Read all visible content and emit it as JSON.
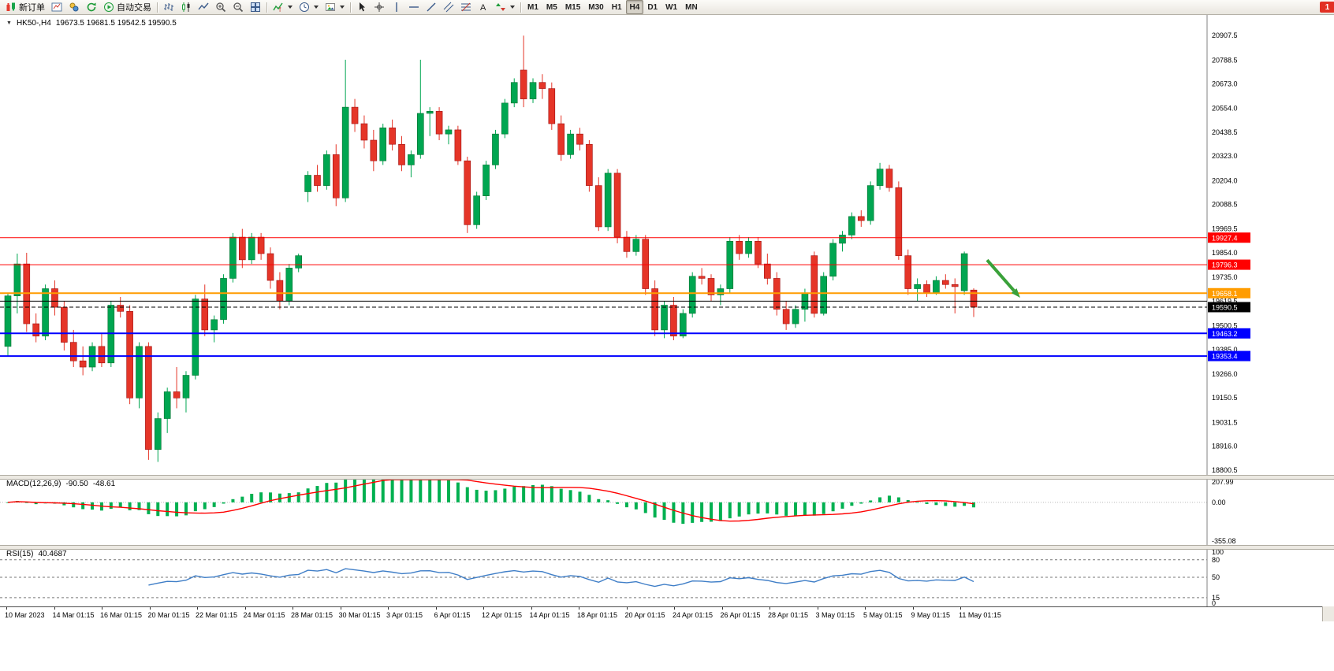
{
  "window": {
    "notification_badge": "1"
  },
  "toolbar": {
    "groups": [
      {
        "items": [
          {
            "name": "new-order",
            "icon": "new-order-icon",
            "label": "新订单"
          },
          {
            "name": "chart-window",
            "icon": "chart-window-icon"
          },
          {
            "name": "profiles",
            "icon": "profiles-icon"
          },
          {
            "name": "refresh",
            "icon": "refresh-icon"
          },
          {
            "name": "auto-trading",
            "icon": "auto-trading-icon",
            "label": "自动交易"
          }
        ]
      },
      {
        "items": [
          {
            "name": "chart-bars",
            "icon": "bars-icon"
          },
          {
            "name": "chart-candles",
            "icon": "candles-icon"
          },
          {
            "name": "chart-line",
            "icon": "line-chart-icon"
          },
          {
            "name": "zoom-in",
            "icon": "zoom-in-icon"
          },
          {
            "name": "zoom-out",
            "icon": "zoom-out-icon"
          },
          {
            "name": "tile-windows",
            "icon": "tile-icon"
          }
        ]
      },
      {
        "items": [
          {
            "name": "indicators",
            "icon": "indicators-icon",
            "caret": true
          },
          {
            "name": "periods",
            "icon": "clock-icon",
            "caret": true
          },
          {
            "name": "templates",
            "icon": "template-icon",
            "caret": true
          }
        ]
      },
      {
        "items": [
          {
            "name": "cursor",
            "icon": "cursor-icon"
          },
          {
            "name": "crosshair",
            "icon": "crosshair-icon"
          },
          {
            "name": "vertical-line",
            "icon": "vline-icon"
          },
          {
            "name": "horizontal-line",
            "icon": "hline-icon"
          },
          {
            "name": "trendline",
            "icon": "trendline-icon"
          },
          {
            "name": "channel",
            "icon": "channel-icon"
          },
          {
            "name": "fibonacci",
            "icon": "fibo-icon"
          },
          {
            "name": "text",
            "icon": "text-icon"
          },
          {
            "name": "arrows",
            "icon": "arrows-icon",
            "caret": true
          }
        ]
      }
    ],
    "timeframes": [
      "M1",
      "M5",
      "M15",
      "M30",
      "H1",
      "H4",
      "D1",
      "W1",
      "MN"
    ],
    "active_timeframe": "H4"
  },
  "chart": {
    "title_symbol_period": "HK50-,H4",
    "title_ohlc": "19673.5 19681.5 19542.5 19590.5",
    "colors": {
      "up": "#00a651",
      "down": "#e53528",
      "bg": "#ffffff"
    }
  },
  "indicators": {
    "macd": {
      "label": "MACD(12,26,9)",
      "value_macd": "-90.50",
      "value_signal": "-48.61"
    },
    "rsi": {
      "label": "RSI(15)",
      "value": "40.4687"
    }
  },
  "chart_data": [
    {
      "type": "candlestick",
      "symbol": "HK50",
      "timeframe": "H4",
      "title": "HK50-,H4",
      "ohlc_current": {
        "open": 19673.5,
        "high": 19681.5,
        "low": 19542.5,
        "close": 19590.5
      },
      "ylim": [
        18777,
        21011
      ],
      "y_ticks": [
        "20907.5",
        "20788.5",
        "20673.0",
        "20554.0",
        "20438.5",
        "20323.0",
        "20204.0",
        "20088.5",
        "19969.5",
        "19854.0",
        "19735.0",
        "19619.5",
        "19500.5",
        "19385.0",
        "19266.0",
        "19150.5",
        "19031.5",
        "18916.0",
        "18800.5"
      ],
      "x_labels": [
        "10 Mar 2023",
        "14 Mar 01:15",
        "16 Mar 01:15",
        "20 Mar 01:15",
        "22 Mar 01:15",
        "24 Mar 01:15",
        "28 Mar 01:15",
        "30 Mar 01:15",
        "3 Apr 01:15",
        "6 Apr 01:15",
        "12 Apr 01:15",
        "14 Apr 01:15",
        "18 Apr 01:15",
        "20 Apr 01:15",
        "24 Apr 01:15",
        "26 Apr 01:15",
        "28 Apr 01:15",
        "3 May 01:15",
        "5 May 01:15",
        "9 May 01:15",
        "11 May 01:15"
      ],
      "hlines": [
        {
          "price": 19927.4,
          "color": "#ff0000",
          "width": 1,
          "label": "19927.4"
        },
        {
          "price": 19796.3,
          "color": "#ff0000",
          "width": 1,
          "label": "19796.3"
        },
        {
          "price": 19658.1,
          "color": "#ff9c00",
          "width": 2,
          "label": "19658.1"
        },
        {
          "price": 19619.5,
          "color": "#000000",
          "width": 1,
          "label": null
        },
        {
          "price": 19590.5,
          "color": "#000000",
          "width": 1,
          "label": "19590.5",
          "dash": true,
          "current": true
        },
        {
          "price": 19463.2,
          "color": "#0000ff",
          "width": 2,
          "label": "19463.2"
        },
        {
          "price": 19353.4,
          "color": "#0000ff",
          "width": 2,
          "label": "19353.4"
        }
      ],
      "annotations": [
        {
          "name": "sell-arrow",
          "type": "arrow",
          "from_price": 19819,
          "to_price": 19636,
          "color": "#3aa13a"
        }
      ],
      "candles": [
        [
          19400,
          19660,
          19350,
          19645
        ],
        [
          19645,
          19850,
          19560,
          19800
        ],
        [
          19800,
          19854,
          19470,
          19510
        ],
        [
          19510,
          19560,
          19420,
          19450
        ],
        [
          19450,
          19700,
          19430,
          19680
        ],
        [
          19680,
          19720,
          19550,
          19590
        ],
        [
          19590,
          19620,
          19380,
          19420
        ],
        [
          19420,
          19480,
          19300,
          19330
        ],
        [
          19330,
          19400,
          19260,
          19300
        ],
        [
          19300,
          19420,
          19280,
          19400
        ],
        [
          19400,
          19460,
          19300,
          19320
        ],
        [
          19320,
          19620,
          19300,
          19600
        ],
        [
          19600,
          19640,
          19540,
          19570
        ],
        [
          19570,
          19600,
          19120,
          19150
        ],
        [
          19150,
          19420,
          19100,
          19400
        ],
        [
          19400,
          19420,
          18850,
          18900
        ],
        [
          18900,
          19080,
          18840,
          19050
        ],
        [
          19050,
          19200,
          18980,
          19180
        ],
        [
          19180,
          19300,
          19100,
          19150
        ],
        [
          19150,
          19280,
          19080,
          19260
        ],
        [
          19260,
          19650,
          19240,
          19630
        ],
        [
          19630,
          19700,
          19450,
          19480
        ],
        [
          19480,
          19550,
          19420,
          19530
        ],
        [
          19530,
          19750,
          19510,
          19730
        ],
        [
          19730,
          19950,
          19710,
          19930
        ],
        [
          19930,
          19970,
          19780,
          19820
        ],
        [
          19820,
          19950,
          19800,
          19930
        ],
        [
          19930,
          19950,
          19820,
          19850
        ],
        [
          19850,
          19880,
          19680,
          19720
        ],
        [
          19720,
          19760,
          19580,
          19620
        ],
        [
          19620,
          19800,
          19600,
          19780
        ],
        [
          19780,
          19850,
          19760,
          19840
        ],
        [
          20150,
          20250,
          20100,
          20230
        ],
        [
          20230,
          20280,
          20150,
          20180
        ],
        [
          20180,
          20350,
          20160,
          20330
        ],
        [
          20330,
          20380,
          20080,
          20120
        ],
        [
          20120,
          20790,
          20100,
          20560
        ],
        [
          20560,
          20600,
          20440,
          20480
        ],
        [
          20480,
          20520,
          20360,
          20400
        ],
        [
          20400,
          20450,
          20250,
          20300
        ],
        [
          20300,
          20480,
          20280,
          20460
        ],
        [
          20460,
          20500,
          20350,
          20380
        ],
        [
          20380,
          20420,
          20250,
          20280
        ],
        [
          20280,
          20350,
          20220,
          20330
        ],
        [
          20330,
          20790,
          20310,
          20530
        ],
        [
          20530,
          20560,
          20420,
          20540
        ],
        [
          20540,
          20560,
          20400,
          20430
        ],
        [
          20430,
          20470,
          20380,
          20450
        ],
        [
          20450,
          20470,
          20280,
          20300
        ],
        [
          20300,
          20320,
          19950,
          19990
        ],
        [
          19990,
          20150,
          19970,
          20130
        ],
        [
          20130,
          20300,
          20110,
          20280
        ],
        [
          20280,
          20450,
          20260,
          20430
        ],
        [
          20430,
          20600,
          20410,
          20580
        ],
        [
          20580,
          20700,
          20560,
          20680
        ],
        [
          20740,
          20907,
          20560,
          20600
        ],
        [
          20600,
          20700,
          20580,
          20680
        ],
        [
          20680,
          20720,
          20600,
          20650
        ],
        [
          20650,
          20680,
          20450,
          20480
        ],
        [
          20480,
          20520,
          20300,
          20330
        ],
        [
          20330,
          20450,
          20310,
          20430
        ],
        [
          20430,
          20460,
          20350,
          20380
        ],
        [
          20380,
          20400,
          20150,
          20180
        ],
        [
          20180,
          20220,
          19960,
          19980
        ],
        [
          19980,
          20260,
          19960,
          20240
        ],
        [
          20240,
          20260,
          19900,
          19930
        ],
        [
          19930,
          19960,
          19830,
          19860
        ],
        [
          19860,
          19940,
          19840,
          19920
        ],
        [
          19920,
          19940,
          19650,
          19680
        ],
        [
          19680,
          19720,
          19450,
          19480
        ],
        [
          19480,
          19620,
          19440,
          19600
        ],
        [
          19600,
          19640,
          19430,
          19450
        ],
        [
          19450,
          19580,
          19440,
          19560
        ],
        [
          19560,
          19760,
          19540,
          19740
        ],
        [
          19740,
          19780,
          19700,
          19730
        ],
        [
          19730,
          19750,
          19620,
          19650
        ],
        [
          19650,
          19700,
          19600,
          19680
        ],
        [
          19680,
          19930,
          19660,
          19910
        ],
        [
          19910,
          19940,
          19820,
          19850
        ],
        [
          19850,
          19930,
          19830,
          19910
        ],
        [
          19910,
          19930,
          19780,
          19800
        ],
        [
          19800,
          19850,
          19700,
          19730
        ],
        [
          19730,
          19760,
          19550,
          19580
        ],
        [
          19580,
          19620,
          19480,
          19510
        ],
        [
          19510,
          19600,
          19490,
          19580
        ],
        [
          19580,
          19680,
          19520,
          19660
        ],
        [
          19840,
          19860,
          19540,
          19560
        ],
        [
          19560,
          19760,
          19550,
          19740
        ],
        [
          19740,
          19920,
          19720,
          19900
        ],
        [
          19900,
          19960,
          19860,
          19940
        ],
        [
          19940,
          20050,
          19920,
          20030
        ],
        [
          20030,
          20060,
          19980,
          20010
        ],
        [
          20010,
          20200,
          19990,
          20180
        ],
        [
          20180,
          20290,
          20160,
          20260
        ],
        [
          20260,
          20280,
          20150,
          20170
        ],
        [
          20170,
          20200,
          19820,
          19840
        ],
        [
          19840,
          19870,
          19650,
          19680
        ],
        [
          19680,
          19730,
          19620,
          19700
        ],
        [
          19700,
          19720,
          19640,
          19660
        ],
        [
          19660,
          19740,
          19650,
          19720
        ],
        [
          19720,
          19750,
          19680,
          19700
        ],
        [
          19700,
          19730,
          19560,
          19690
        ],
        [
          19670,
          19860,
          19650,
          19850
        ],
        [
          19673.5,
          19681.5,
          19542.5,
          19590.5
        ]
      ]
    },
    {
      "type": "bar",
      "name": "MACD",
      "params": "12,26,9",
      "values_display": [
        "-90.50",
        "-48.61"
      ],
      "derived_from": "candle closes of chart_data[0]",
      "y_ticks": [
        "207.99",
        "0.00",
        "-355.08"
      ],
      "ylim": [
        -390,
        222
      ],
      "histogram_color": "#00b050",
      "signal_color": "#ff0000"
    },
    {
      "type": "line",
      "name": "RSI",
      "params": "15",
      "value_display": "40.4687",
      "derived_from": "candle closes of chart_data[0]",
      "levels": [
        80,
        50,
        15
      ],
      "y_ticks": [
        "100",
        "80",
        "50",
        "15",
        "0"
      ],
      "ylim": [
        0,
        100
      ],
      "line_color": "#3f7ec7"
    }
  ]
}
